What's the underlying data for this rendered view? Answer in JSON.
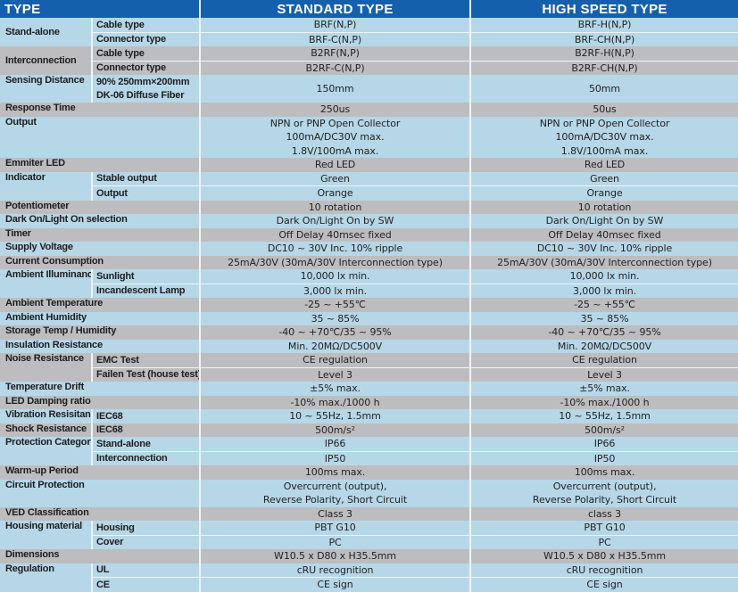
{
  "header": {
    "type": "TYPE",
    "standard": "STANDARD TYPE",
    "high": "HIGH SPEED TYPE"
  },
  "colors": {
    "header": "#1560ad",
    "row_blue": "#b6d7e8",
    "row_gray": "#bdbdbf"
  },
  "rows": [
    {
      "label": "Stand-alone",
      "sub": [
        "Cable type",
        "Connector type"
      ],
      "standard": [
        "BRF(N,P)",
        "BRF-C(N,P)"
      ],
      "high": [
        "BRF-H(N,P)",
        "BRF-CH(N,P)"
      ]
    },
    {
      "label": "Interconnection",
      "sub": [
        "Cable type",
        "Connector type"
      ],
      "standard": [
        "B2RF(N,P)",
        "B2RF-C(N,P)"
      ],
      "high": [
        "B2RF-H(N,P)",
        "B2RF-CH(N,P)"
      ]
    },
    {
      "label": "Sensing Distance",
      "sub": [
        "90% 250mm×200mm",
        "DK-06 Diffuse Fiber"
      ],
      "standard": [
        "150mm"
      ],
      "high": [
        "50mm"
      ]
    },
    {
      "label": "Response Time",
      "sub": [],
      "standard": [
        "250us"
      ],
      "high": [
        "50us"
      ]
    },
    {
      "label": "Output",
      "sub": [],
      "standard": [
        "NPN or PNP Open Collector",
        "100mA/DC30V  max.",
        "1.8V/100mA max."
      ],
      "high": [
        "NPN or PNP Open Collector",
        "100mA/DC30V  max.",
        "1.8V/100mA max."
      ]
    },
    {
      "label": "Emmiter LED",
      "sub": [],
      "standard": [
        "Red LED"
      ],
      "high": [
        "Red LED"
      ]
    },
    {
      "label": "Indicator",
      "sub": [
        "Stable output",
        "Output"
      ],
      "standard": [
        "Green",
        "Orange"
      ],
      "high": [
        "Green",
        "Orange"
      ]
    },
    {
      "label": "Potentiometer",
      "sub": [],
      "standard": [
        "10 rotation"
      ],
      "high": [
        "10 rotation"
      ]
    },
    {
      "label": "Dark On/Light On selection",
      "sub": [],
      "standard": [
        "Dark On/Light On by SW"
      ],
      "high": [
        "Dark On/Light On by SW"
      ]
    },
    {
      "label": "Timer",
      "sub": [],
      "standard": [
        "Off Delay 40msec fixed"
      ],
      "high": [
        "Off Delay 40msec fixed"
      ]
    },
    {
      "label": "Supply Voltage",
      "sub": [],
      "standard": [
        "DC10 ~ 30V Inc. 10% ripple"
      ],
      "high": [
        "DC10 ~ 30V Inc. 10% ripple"
      ]
    },
    {
      "label": "Current Consumption",
      "sub": [],
      "standard": [
        "25mA/30V (30mA/30V Interconnection type)"
      ],
      "high": [
        "25mA/30V (30mA/30V Interconnection type)"
      ]
    },
    {
      "label": "Ambient Illuminance",
      "sub": [
        "Sunlight",
        "Incandescent Lamp"
      ],
      "standard": [
        "10,000 lx min.",
        "3,000 lx min."
      ],
      "high": [
        "10,000 lx min.",
        "3,000 lx min."
      ]
    },
    {
      "label": "Ambient Temperature",
      "sub": [],
      "standard": [
        "-25 ~ +55℃"
      ],
      "high": [
        "-25 ~ +55℃"
      ]
    },
    {
      "label": "Ambient Humidity",
      "sub": [],
      "standard": [
        "35 ~ 85%"
      ],
      "high": [
        "35 ~ 85%"
      ]
    },
    {
      "label": "Storage Temp / Humidity",
      "sub": [],
      "standard": [
        "-40 ~ +70℃/35 ~ 95%"
      ],
      "high": [
        "-40 ~ +70℃/35 ~ 95%"
      ]
    },
    {
      "label": "Insulation Resistance",
      "sub": [],
      "standard": [
        "Min. 20MΩ/DC500V"
      ],
      "high": [
        "Min. 20MΩ/DC500V"
      ]
    },
    {
      "label": "Noise Resistance",
      "sub": [
        "EMC Test",
        "Failen Test (house test)"
      ],
      "standard": [
        "CE regulation",
        "Level 3"
      ],
      "high": [
        "CE regulation",
        "Level 3"
      ]
    },
    {
      "label": "Temperature Drift",
      "sub": [],
      "standard": [
        "±5% max."
      ],
      "high": [
        "±5% max."
      ]
    },
    {
      "label": "LED Damping ratio",
      "sub": [],
      "standard": [
        "-10% max./1000 h"
      ],
      "high": [
        "-10% max./1000 h"
      ]
    },
    {
      "label": "Vibration Resisitance",
      "sub": [
        "IEC68"
      ],
      "standard": [
        "10 ~ 55Hz,  1.5mm"
      ],
      "high": [
        "10 ~ 55Hz,  1.5mm"
      ]
    },
    {
      "label": "Shock Resistance",
      "sub": [
        "IEC68"
      ],
      "standard": [
        "500m/s²"
      ],
      "high": [
        "500m/s²"
      ]
    },
    {
      "label": "Protection Category",
      "sub": [
        "Stand-alone",
        "Interconnection"
      ],
      "standard": [
        "IP66",
        "IP50"
      ],
      "high": [
        "IP66",
        "IP50"
      ]
    },
    {
      "label": "Warm-up Period",
      "sub": [],
      "standard": [
        "100ms max."
      ],
      "high": [
        "100ms max."
      ]
    },
    {
      "label": "Circuit Protection",
      "sub": [],
      "standard": [
        "Overcurrent (output),",
        "Reverse Polarity,  Short Circuit"
      ],
      "high": [
        "Overcurrent (output),",
        "Reverse Polarity,  Short Circuit"
      ]
    },
    {
      "label": "VED Classification",
      "sub": [],
      "standard": [
        "Class 3"
      ],
      "high": [
        "class 3"
      ]
    },
    {
      "label": "Housing material",
      "sub": [
        "Housing",
        "Cover"
      ],
      "standard": [
        "PBT   G10",
        "PC"
      ],
      "high": [
        "PBT   G10",
        "PC"
      ]
    },
    {
      "label": "Dimensions",
      "sub": [],
      "standard": [
        "W10.5 x D80 x H35.5mm"
      ],
      "high": [
        "W10.5 x D80 x H35.5mm"
      ]
    },
    {
      "label": "Regulation",
      "sub": [
        "UL",
        "CE"
      ],
      "standard": [
        "cRU recognition",
        "CE sign"
      ],
      "high": [
        "cRU recognition",
        "CE sign"
      ]
    }
  ]
}
